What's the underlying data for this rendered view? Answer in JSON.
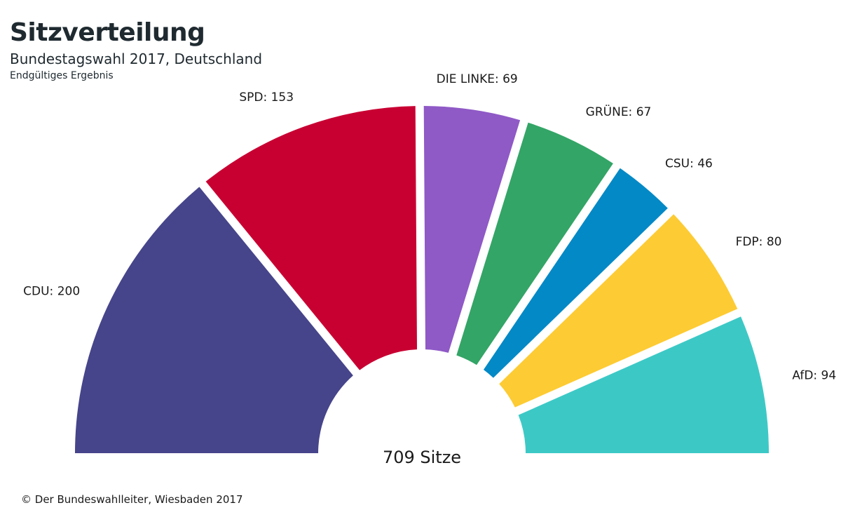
{
  "header": {
    "title": "Sitzverteilung",
    "subtitle": "Bundestagswahl 2017, Deutschland",
    "note": "Endgültiges Ergebnis"
  },
  "footer": {
    "copyright": "© Der Bundeswahlleiter, Wiesbaden 2017"
  },
  "chart_data": {
    "type": "pie",
    "variant": "half-donut (parliament seat distribution)",
    "title": "Sitzverteilung",
    "subtitle": "Bundestagswahl 2017, Deutschland",
    "total_label": "709 Sitze",
    "total": 709,
    "series": [
      {
        "name": "CDU",
        "value": 200,
        "label": "CDU: 200",
        "color": "#46448a"
      },
      {
        "name": "SPD",
        "value": 153,
        "label": "SPD: 153",
        "color": "#c80032"
      },
      {
        "name": "DIE LINKE",
        "value": 69,
        "label": "DIE LINKE: 69",
        "color": "#8f59c6"
      },
      {
        "name": "GRÜNE",
        "value": 67,
        "label": "GRÜNE: 67",
        "color": "#33a566"
      },
      {
        "name": "CSU",
        "value": 46,
        "label": "CSU: 46",
        "color": "#0389c6"
      },
      {
        "name": "FDP",
        "value": 80,
        "label": "FDP: 80",
        "color": "#fdcb33"
      },
      {
        "name": "AfD",
        "value": 94,
        "label": "AfD: 94",
        "color": "#3cc9c6"
      }
    ]
  }
}
